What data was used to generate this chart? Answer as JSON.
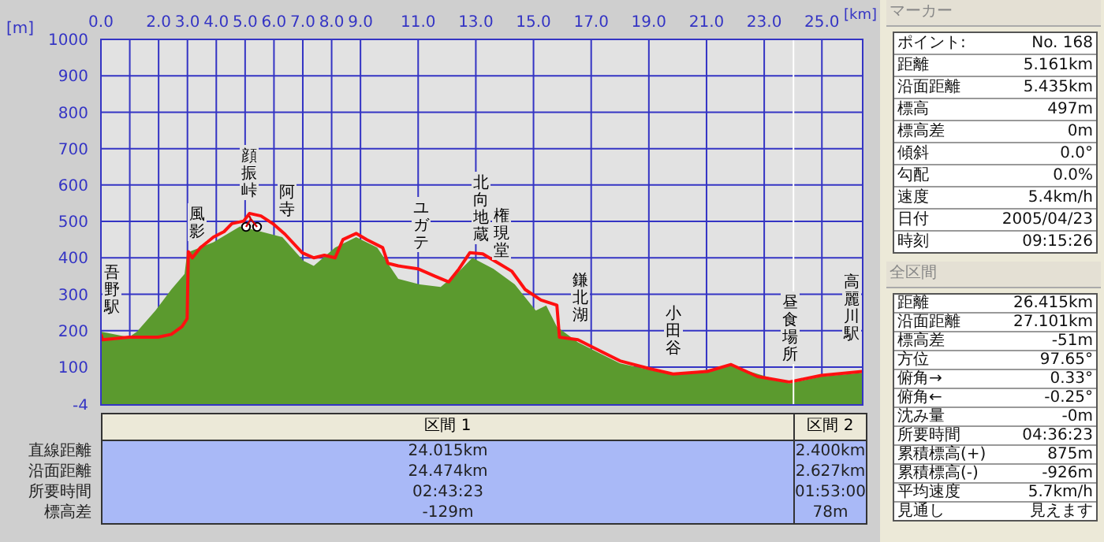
{
  "chart_data": [
    {
      "type": "line",
      "xlabel": "[km]",
      "ylabel": "[m]",
      "xlim": [
        0,
        26.415
      ],
      "ylim": [
        -4,
        1000
      ],
      "xticks": [
        {
          "value": 0,
          "label": "0.0"
        },
        {
          "value": 1,
          "label": null
        },
        {
          "value": 2,
          "label": "2.0"
        },
        {
          "value": 3,
          "label": "3.0"
        },
        {
          "value": 4,
          "label": "4.0"
        },
        {
          "value": 5,
          "label": "5.0"
        },
        {
          "value": 6,
          "label": "6.0"
        },
        {
          "value": 7,
          "label": "7.0"
        },
        {
          "value": 8,
          "label": "8.0"
        },
        {
          "value": 9,
          "label": "9.0"
        },
        {
          "value": 11,
          "label": "11.0"
        },
        {
          "value": 13,
          "label": "13.0"
        },
        {
          "value": 15,
          "label": "15.0"
        },
        {
          "value": 17,
          "label": "17.0"
        },
        {
          "value": 19,
          "label": "19.0"
        },
        {
          "value": 21,
          "label": "21.0"
        },
        {
          "value": 23,
          "label": "23.0"
        },
        {
          "value": 25,
          "label": "25.0"
        }
      ],
      "yticks": [
        -4,
        100,
        200,
        300,
        400,
        500,
        600,
        700,
        800,
        900,
        1000
      ],
      "grid": true,
      "marker": "none",
      "line_style": "solid",
      "series": [
        {
          "type": "area",
          "color": "#5b9a2e",
          "x": [
            0,
            0.97,
            1.25,
            1.89,
            2.44,
            2.9,
            2.99,
            3.9,
            4.82,
            5.55,
            6.29,
            7.02,
            7.38,
            8.12,
            8.85,
            9.58,
            10.31,
            11.05,
            11.78,
            12.33,
            12.88,
            13.61,
            14.35,
            15.08,
            15.44,
            15.81,
            16.54,
            18.0,
            19.84,
            21.85,
            23.87,
            24.98,
            26.4
          ],
          "values": [
            197,
            182,
            197,
            255,
            313,
            356,
            414,
            443,
            486,
            472,
            457,
            392,
            378,
            428,
            457,
            428,
            342,
            327,
            320,
            356,
            400,
            370,
            327,
            255,
            269,
            211,
            168,
            110,
            78,
            103,
            55,
            74,
            84
          ]
        },
        {
          "type": "line",
          "color": "#ff1010",
          "x": [
            0,
            0.06,
            0.97,
            1.98,
            2.44,
            2.81,
            2.99,
            3.03,
            3.17,
            3.45,
            3.9,
            4.27,
            4.54,
            4.95,
            5.15,
            5.55,
            5.96,
            6.38,
            6.98,
            7.38,
            7.75,
            8.12,
            8.39,
            8.85,
            9.22,
            9.77,
            9.95,
            10.31,
            10.99,
            11.6,
            12.06,
            12.42,
            12.79,
            13.24,
            13.79,
            14.25,
            14.71,
            15.26,
            15.81,
            15.9,
            16.54,
            17.27,
            18.0,
            19.0,
            19.84,
            21.03,
            21.85,
            22.77,
            23.87,
            24.98,
            26.4
          ],
          "values": [
            190,
            175,
            182,
            182,
            190,
            211,
            233,
            417,
            400,
            428,
            457,
            472,
            494,
            501,
            522,
            515,
            494,
            465,
            414,
            400,
            407,
            400,
            450,
            467,
            450,
            428,
            385,
            378,
            370,
            349,
            334,
            370,
            414,
            411,
            385,
            363,
            313,
            284,
            270,
            182,
            175,
            146,
            117,
            96,
            81,
            88,
            107,
            74,
            59,
            77,
            88
          ]
        }
      ],
      "ref_lines": [
        {
          "axis": "x",
          "value": 24.015,
          "color": "#ffffff"
        }
      ],
      "annotations": [
        "吾野駅",
        "風影",
        "顔振峠",
        "阿寺",
        "ユガテ",
        "北向地蔵",
        "権現堂",
        "鎌北湖",
        "小田谷",
        "昼食場所",
        "高麗川駅"
      ]
    },
    {
      "type": "other",
      "categories": [
        "区間 1",
        "区間 2"
      ],
      "y_categories": [
        "直線距離",
        "沿面距離",
        "所要時間",
        "標高差"
      ],
      "cell_labels": [
        [
          "24.015km",
          "2.400km"
        ],
        [
          "24.474km",
          "2.627km"
        ],
        [
          "02:43:23",
          "01:53:00"
        ],
        [
          "-129m",
          "78m"
        ]
      ]
    },
    {
      "type": "other",
      "title": "マーカー",
      "y_categories": [
        "ポイント:",
        "距離",
        "沿面距離",
        "標高",
        "標高差",
        "傾斜",
        "勾配",
        "速度",
        "日付",
        "時刻"
      ],
      "cell_labels": [
        [
          "No. 168"
        ],
        [
          "5.161km"
        ],
        [
          "5.435km"
        ],
        [
          "497m"
        ],
        [
          "0m"
        ],
        [
          "0.0°"
        ],
        [
          "0.0%"
        ],
        [
          "5.4km/h"
        ],
        [
          "2005/04/23"
        ],
        [
          "09:15:26"
        ]
      ]
    },
    {
      "type": "other",
      "title": "全区間",
      "y_categories": [
        "距離",
        "沿面距離",
        "標高差",
        "方位",
        "俯角→",
        "俯角←",
        "沈み量",
        "所要時間",
        "累積標高(+)",
        "累積標高(-)",
        "平均速度",
        "見通し"
      ],
      "cell_labels": [
        [
          "26.415km"
        ],
        [
          "27.101km"
        ],
        [
          "-51m"
        ],
        [
          "97.65°"
        ],
        [
          "0.33°"
        ],
        [
          "-0.25°"
        ],
        [
          "-0m"
        ],
        [
          "04:36:23"
        ],
        [
          "875m"
        ],
        [
          "-926m"
        ],
        [
          "5.7km/h"
        ],
        [
          "見えます"
        ]
      ]
    }
  ]
}
